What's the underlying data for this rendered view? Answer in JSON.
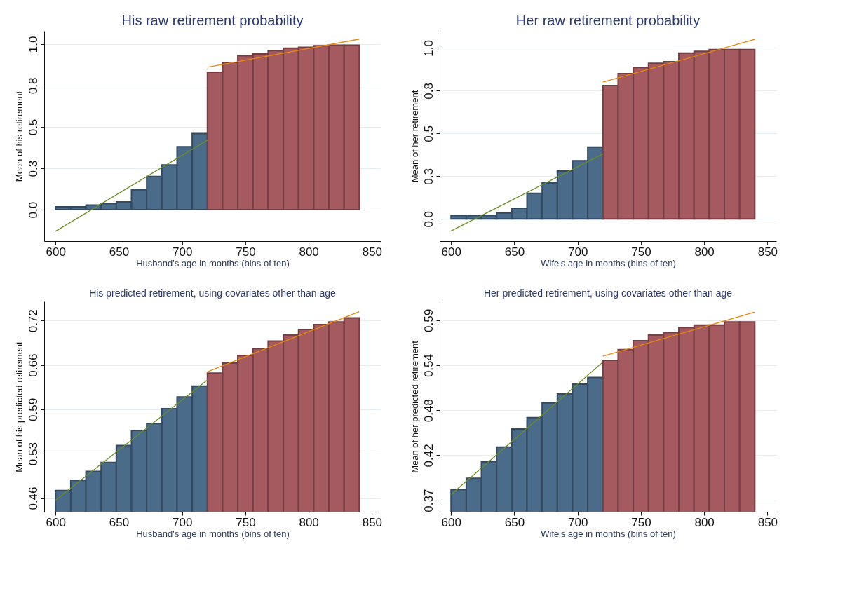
{
  "chart_data": [
    {
      "type": "histogram",
      "title": "His raw retirement probability",
      "xlabel": "Husband's age in months  (bins of ten)",
      "ylabel": "Mean of his retirement",
      "bins": [
        600,
        612,
        624,
        636,
        648,
        660,
        672,
        684,
        696,
        708,
        720,
        732,
        744,
        756,
        768,
        780,
        792,
        804,
        816,
        828,
        840
      ],
      "xlim": [
        591,
        857
      ],
      "xticks": [
        600,
        650,
        700,
        750,
        800,
        850
      ],
      "ylim": [
        -0.19,
        1.08
      ],
      "yticks": [
        {
          "value": 0,
          "label": "0.0"
        },
        {
          "value": 0.25,
          "label": "0.3"
        },
        {
          "value": 0.5,
          "label": "0.5"
        },
        {
          "value": 0.75,
          "label": "0.8"
        },
        {
          "value": 1,
          "label": "1.0"
        }
      ],
      "grid": "y",
      "series": [
        {
          "color": "#4a6b8a",
          "values": [
            0.017,
            0.017,
            0.028,
            0.037,
            0.047,
            0.12,
            0.2,
            0.27,
            0.38,
            0.46,
            null,
            null,
            null,
            null,
            null,
            null,
            null,
            null,
            null,
            null
          ]
        },
        {
          "color": "#a45a5e",
          "values": [
            null,
            null,
            null,
            null,
            null,
            null,
            null,
            null,
            null,
            null,
            0.83,
            0.89,
            0.93,
            0.94,
            0.96,
            0.975,
            0.98,
            0.99,
            0.993,
            0.993
          ]
        },
        {
          "type": "line",
          "color": "#6b8e23",
          "x": [
            600,
            720
          ],
          "values": [
            -0.13,
            0.42
          ]
        },
        {
          "type": "line",
          "color": "#e8870e",
          "x": [
            720,
            840
          ],
          "values": [
            0.86,
            1.03
          ]
        }
      ]
    },
    {
      "type": "histogram",
      "title": "Her raw retirement probability",
      "xlabel": "Wife's age in months  (bins of ten)",
      "ylabel": "Mean of her retirement",
      "bins": [
        600,
        612,
        624,
        636,
        648,
        660,
        672,
        684,
        696,
        708,
        720,
        732,
        744,
        756,
        768,
        780,
        792,
        804,
        816,
        828,
        840
      ],
      "xlim": [
        591,
        857
      ],
      "xticks": [
        600,
        650,
        700,
        750,
        800,
        850
      ],
      "ylim": [
        -0.13,
        1.1
      ],
      "yticks": [
        {
          "value": 0,
          "label": "0.0"
        },
        {
          "value": 0.25,
          "label": "0.3"
        },
        {
          "value": 0.5,
          "label": "0.5"
        },
        {
          "value": 0.75,
          "label": "0.8"
        },
        {
          "value": 1,
          "label": "1.0"
        }
      ],
      "grid": "y",
      "series": [
        {
          "color": "#4a6b8a",
          "values": [
            0.02,
            0.02,
            0.02,
            0.035,
            0.063,
            0.15,
            0.21,
            0.28,
            0.34,
            0.42,
            null,
            null,
            null,
            null,
            null,
            null,
            null,
            null,
            null,
            null
          ]
        },
        {
          "color": "#a45a5e",
          "values": [
            null,
            null,
            null,
            null,
            null,
            null,
            null,
            null,
            null,
            null,
            0.78,
            0.85,
            0.886,
            0.91,
            0.92,
            0.97,
            0.98,
            0.99,
            0.99,
            0.99
          ]
        },
        {
          "type": "line",
          "color": "#6b8e23",
          "x": [
            600,
            720
          ],
          "values": [
            -0.07,
            0.38
          ]
        },
        {
          "type": "line",
          "color": "#e8870e",
          "x": [
            720,
            840
          ],
          "values": [
            0.8,
            1.05
          ]
        }
      ]
    },
    {
      "type": "histogram",
      "title": "His predicted retirement, using covariates other than age",
      "xlabel": "Husband's age in months  (bins of ten)",
      "ylabel": "Mean of his predicted retirement",
      "bins": [
        600,
        612,
        624,
        636,
        648,
        660,
        672,
        684,
        696,
        708,
        720,
        732,
        744,
        756,
        768,
        780,
        792,
        804,
        816,
        828,
        840
      ],
      "xlim": [
        591,
        857
      ],
      "xticks": [
        600,
        650,
        700,
        750,
        800,
        850
      ],
      "ylim": [
        0.44,
        0.748
      ],
      "yticks": [
        0.46,
        {
          "value": 0.525,
          "label": "0.53"
        },
        0.59,
        {
          "value": 0.655,
          "label": "0.66"
        },
        0.72
      ],
      "grid": "y",
      "series": [
        {
          "color": "#4a6b8a",
          "values": [
            0.471,
            0.486,
            0.499,
            0.512,
            0.537,
            0.559,
            0.569,
            0.591,
            0.608,
            0.624,
            null,
            null,
            null,
            null,
            null,
            null,
            null,
            null,
            null,
            null
          ]
        },
        {
          "color": "#a45a5e",
          "values": [
            null,
            null,
            null,
            null,
            null,
            null,
            null,
            null,
            null,
            null,
            0.643,
            0.658,
            0.669,
            0.679,
            0.69,
            0.699,
            0.707,
            0.714,
            0.718,
            0.724
          ]
        },
        {
          "type": "line",
          "color": "#6b8e23",
          "x": [
            600,
            720
          ],
          "values": [
            0.457,
            0.633
          ]
        },
        {
          "type": "line",
          "color": "#e8870e",
          "x": [
            720,
            840
          ],
          "values": [
            0.645,
            0.733
          ]
        }
      ]
    },
    {
      "type": "histogram",
      "title": "Her predicted retirement, using covariates other than age",
      "xlabel": "Wife's age in months  (bins of ten)",
      "ylabel": "Mean of her predicted retirement",
      "bins": [
        600,
        612,
        624,
        636,
        648,
        660,
        672,
        684,
        696,
        708,
        720,
        732,
        744,
        756,
        768,
        780,
        792,
        804,
        816,
        828,
        840
      ],
      "xlim": [
        591,
        857
      ],
      "xticks": [
        600,
        650,
        700,
        750,
        800,
        850
      ],
      "ylim": [
        0.356,
        0.613
      ],
      "yticks": [
        0.37,
        {
          "value": 0.425,
          "label": "0.42"
        },
        0.48,
        {
          "value": 0.535,
          "label": "0.54"
        },
        0.59
      ],
      "grid": "y",
      "series": [
        {
          "color": "#4a6b8a",
          "values": [
            0.383,
            0.397,
            0.417,
            0.435,
            0.457,
            0.471,
            0.489,
            0.5,
            0.512,
            0.52,
            null,
            null,
            null,
            null,
            null,
            null,
            null,
            null,
            null,
            null
          ]
        },
        {
          "color": "#a45a5e",
          "values": [
            null,
            null,
            null,
            null,
            null,
            null,
            null,
            null,
            null,
            null,
            0.541,
            0.554,
            0.565,
            0.572,
            0.575,
            0.581,
            0.584,
            0.584,
            0.588,
            0.588
          ]
        },
        {
          "type": "line",
          "color": "#6b8e23",
          "x": [
            600,
            720
          ],
          "values": [
            0.377,
            0.539
          ]
        },
        {
          "type": "line",
          "color": "#e8870e",
          "x": [
            720,
            840
          ],
          "values": [
            0.546,
            0.6
          ]
        }
      ]
    }
  ]
}
